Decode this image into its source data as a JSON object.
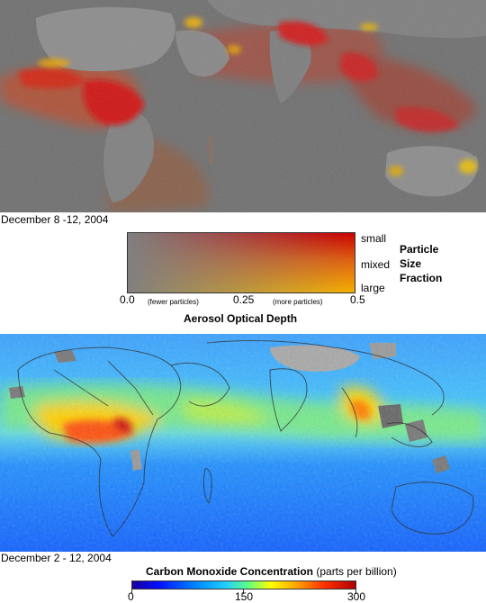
{
  "top_panel": {
    "date": "December 8 -12, 2004",
    "legend": {
      "size_labels": {
        "small": "small",
        "mixed": "mixed",
        "large": "large"
      },
      "size_title": [
        "Particle",
        "Size",
        "Fraction"
      ],
      "axis_ticks": {
        "min": "0.0",
        "mid": "0.25",
        "max": "0.5"
      },
      "hint_left": "(fewer particles)",
      "hint_right": "(more particles)",
      "title": "Aerosol Optical Depth",
      "colors": {
        "small": "#cc0000",
        "mixed": "#e06010",
        "large": "#f5b000",
        "none": "#808080"
      }
    }
  },
  "bottom_panel": {
    "date": "December 2 - 12, 2004",
    "legend": {
      "title": "Carbon Monoxide Concentration",
      "units": "(parts per billion)",
      "ticks": [
        "0",
        "150",
        "300"
      ],
      "range": [
        0,
        300
      ]
    }
  }
}
